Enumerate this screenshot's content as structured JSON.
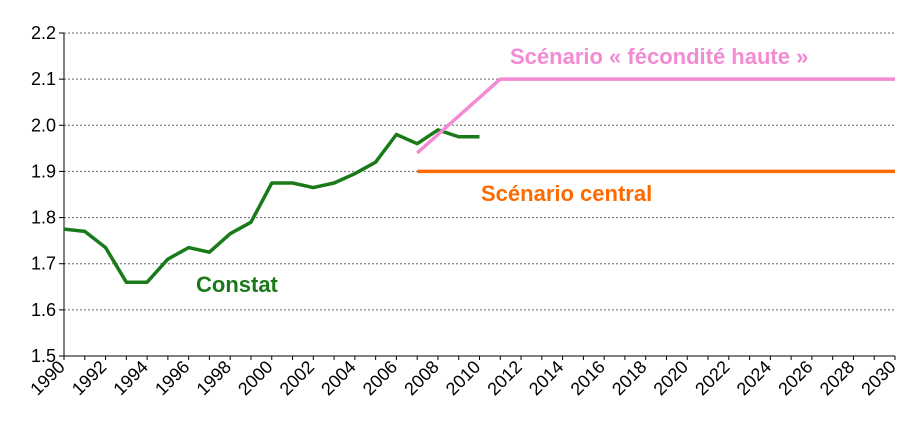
{
  "chart_data": {
    "type": "line",
    "xlim": [
      1990,
      2030
    ],
    "ylim": [
      1.5,
      2.2
    ],
    "grid": "horizontal-dashed",
    "x_ticks": [
      1990,
      1992,
      1994,
      1996,
      1998,
      2000,
      2002,
      2004,
      2006,
      2008,
      2010,
      2012,
      2014,
      2016,
      2018,
      2020,
      2022,
      2024,
      2026,
      2028,
      2030
    ],
    "y_ticks": [
      "1.5",
      "1.6",
      "1.7",
      "1.8",
      "1.9",
      "2.0",
      "2.1",
      "2.2"
    ],
    "series": [
      {
        "name": "Constat",
        "color": "#1a7a1a",
        "x": [
          1990,
          1991,
          1992,
          1993,
          1994,
          1995,
          1996,
          1997,
          1998,
          1999,
          2000,
          2001,
          2002,
          2003,
          2004,
          2005,
          2006,
          2007,
          2008,
          2009,
          2010
        ],
        "y": [
          1.775,
          1.77,
          1.735,
          1.66,
          1.66,
          1.71,
          1.735,
          1.725,
          1.765,
          1.79,
          1.875,
          1.875,
          1.865,
          1.875,
          1.895,
          1.92,
          1.98,
          1.96,
          1.99,
          1.975,
          1.975
        ]
      },
      {
        "name": "Scénario « fécondité haute »",
        "color": "#f28ad4",
        "x": [
          2007,
          2009,
          2011,
          2030
        ],
        "y": [
          1.94,
          2.02,
          2.1,
          2.1
        ]
      },
      {
        "name": "Scénario central",
        "color": "#ff6a00",
        "x": [
          2007,
          2030
        ],
        "y": [
          1.9,
          1.9
        ]
      }
    ]
  }
}
